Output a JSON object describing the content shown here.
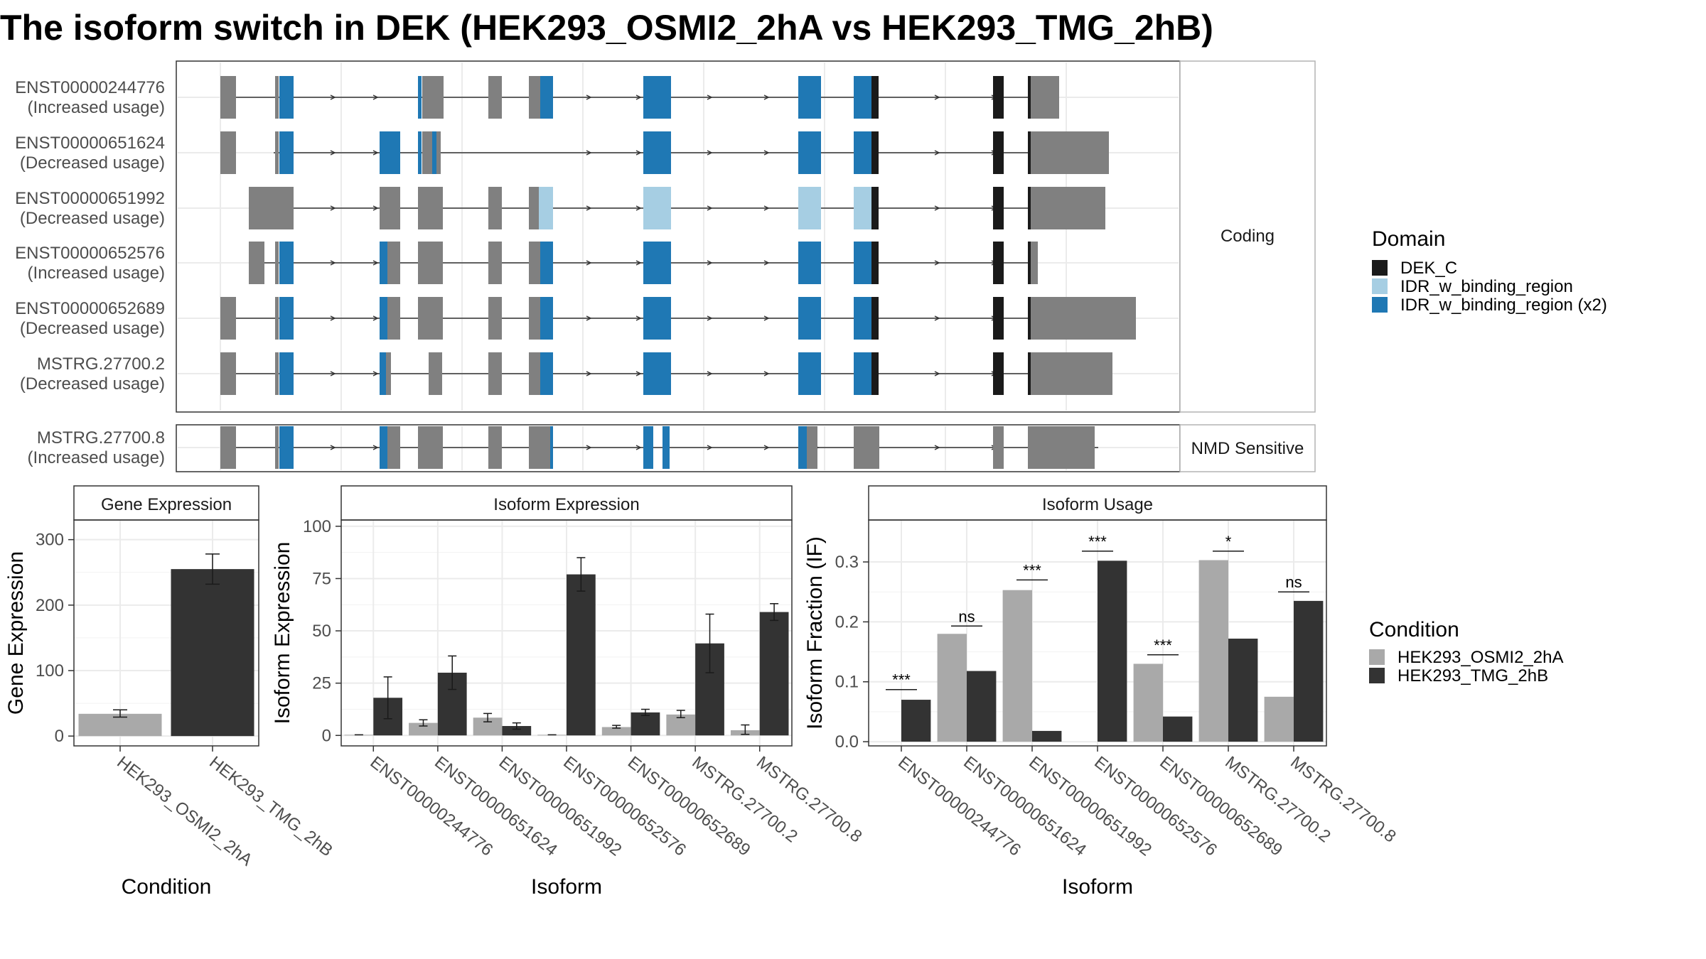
{
  "title": "The isoform switch in DEK (HEK293_OSMI2_2hA vs HEK293_TMG_2hB)",
  "structure": {
    "coding_label": "Coding",
    "nmd_label": "NMD Sensitive",
    "transcripts": [
      {
        "id": "ENST00000244776",
        "usage": "(Increased usage)",
        "group": "Coding"
      },
      {
        "id": "ENST00000651624",
        "usage": "(Decreased usage)",
        "group": "Coding"
      },
      {
        "id": "ENST00000651992",
        "usage": "(Decreased usage)",
        "group": "Coding"
      },
      {
        "id": "ENST00000652576",
        "usage": "(Increased usage)",
        "group": "Coding"
      },
      {
        "id": "ENST00000652689",
        "usage": "(Decreased usage)",
        "group": "Coding"
      },
      {
        "id": "MSTRG.27700.2",
        "usage": "(Decreased usage)",
        "group": "Coding"
      },
      {
        "id": "MSTRG.27700.8",
        "usage": "(Increased usage)",
        "group": "NMD Sensitive"
      }
    ],
    "domain_legend": {
      "title": "Domain",
      "items": [
        {
          "label": "DEK_C",
          "color": "#1a1a1a"
        },
        {
          "label": "IDR_w_binding_region",
          "color": "#a6cee3"
        },
        {
          "label": "IDR_w_binding_region (x2)",
          "color": "#1f78b4"
        }
      ]
    },
    "exon_color": "#808080"
  },
  "condition_legend": {
    "title": "Condition",
    "items": [
      {
        "label": "HEK293_OSMI2_2hA",
        "color": "#a9a9a9"
      },
      {
        "label": "HEK293_TMG_2hB",
        "color": "#333333"
      }
    ]
  },
  "chart_data": [
    {
      "type": "bar",
      "panel_title": "Gene Expression",
      "xlabel": "Condition",
      "ylabel": "Gene Expression",
      "categories": [
        "HEK293_OSMI2_2hA",
        "HEK293_TMG_2hB"
      ],
      "values": [
        34,
        255
      ],
      "errors": [
        [
          29,
          40
        ],
        [
          232,
          278
        ]
      ],
      "yticks": [
        0,
        100,
        200,
        300
      ],
      "ylim": [
        -15,
        330
      ]
    },
    {
      "type": "bar",
      "panel_title": "Isoform Expression",
      "xlabel": "Isoform",
      "ylabel": "Isoform Expression",
      "categories": [
        "ENST00000244776",
        "ENST00000651624",
        "ENST00000651992",
        "ENST00000652576",
        "ENST00000652689",
        "MSTRG.27700.2",
        "MSTRG.27700.8"
      ],
      "series": [
        {
          "name": "HEK293_OSMI2_2hA",
          "values": [
            0.3,
            6,
            8.5,
            0.3,
            4,
            10,
            2.5
          ],
          "errors": [
            [
              0.3,
              0.3
            ],
            [
              4.5,
              7.5
            ],
            [
              6.5,
              10.5
            ],
            [
              0.3,
              0.3
            ],
            [
              3.5,
              4.8
            ],
            [
              8.5,
              12
            ],
            [
              0.5,
              5
            ]
          ]
        },
        {
          "name": "HEK293_TMG_2hB",
          "values": [
            18,
            30,
            4.5,
            77,
            11,
            44,
            59
          ],
          "errors": [
            [
              8,
              28
            ],
            [
              22,
              38
            ],
            [
              3,
              6
            ],
            [
              69,
              85
            ],
            [
              9.5,
              12.5
            ],
            [
              30,
              58
            ],
            [
              55,
              63
            ]
          ]
        }
      ],
      "yticks": [
        0,
        25,
        50,
        75,
        100
      ],
      "ylim": [
        -5,
        103
      ]
    },
    {
      "type": "bar",
      "panel_title": "Isoform Usage",
      "xlabel": "Isoform",
      "ylabel": "Isoform Fraction (IF)",
      "categories": [
        "ENST00000244776",
        "ENST00000651624",
        "ENST00000651992",
        "ENST00000652576",
        "ENST00000652689",
        "MSTRG.27700.2",
        "MSTRG.27700.8"
      ],
      "series": [
        {
          "name": "HEK293_OSMI2_2hA",
          "values": [
            0.0,
            0.18,
            0.253,
            0.0,
            0.13,
            0.303,
            0.075
          ]
        },
        {
          "name": "HEK293_TMG_2hB",
          "values": [
            0.07,
            0.118,
            0.018,
            0.302,
            0.042,
            0.172,
            0.235
          ]
        }
      ],
      "significance": [
        "***",
        "ns",
        "***",
        "***",
        "***",
        "*",
        "ns"
      ],
      "sig_y": [
        0.087,
        0.193,
        0.27,
        0.318,
        0.145,
        0.318,
        0.25
      ],
      "yticks": [
        0.0,
        0.1,
        0.2,
        0.3
      ],
      "ylim": [
        -0.007,
        0.37
      ]
    }
  ]
}
